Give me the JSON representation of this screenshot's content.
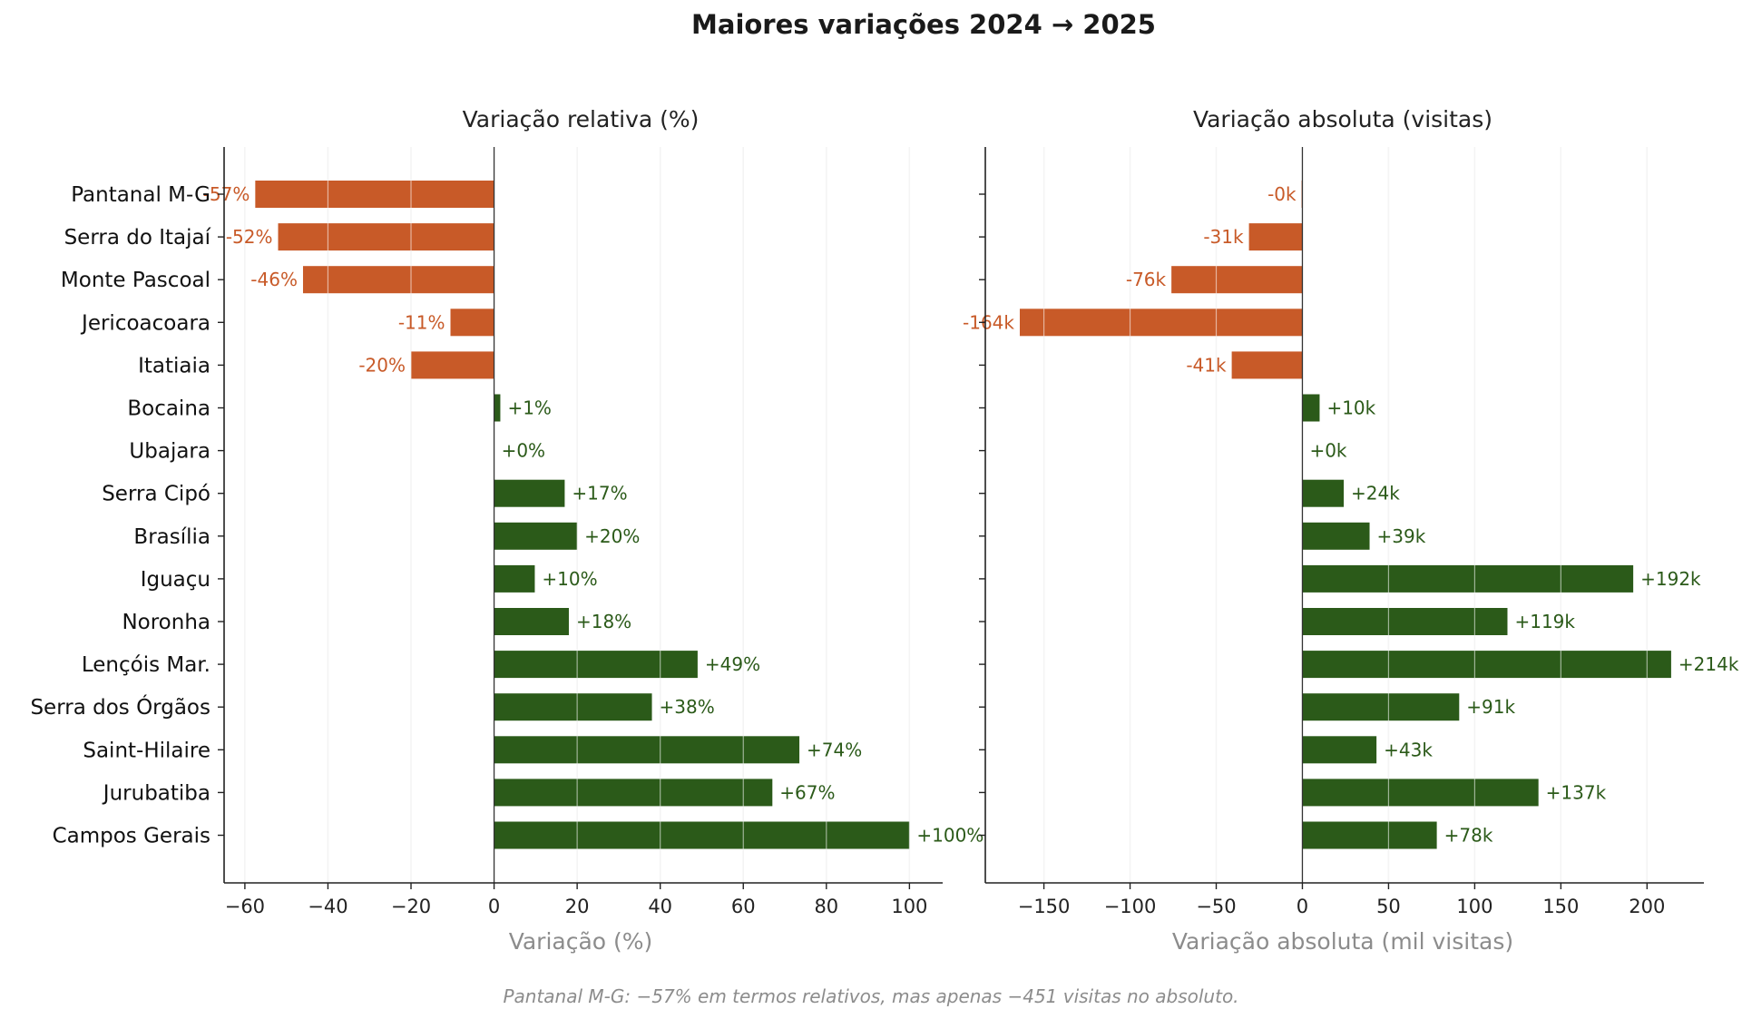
{
  "figure": {
    "title": "Maiores variações 2024 → 2025",
    "footnote": "Pantanal M-G: −57% em termos relativos, mas apenas −451 visitas no absoluto."
  },
  "colors": {
    "negative": "#c85a28",
    "positive": "#2b5a19",
    "axis_label": "#8c8c8c",
    "grid": "#e6e6e6"
  },
  "chart_data": [
    {
      "type": "bar",
      "orientation": "horizontal",
      "title": "Variação relativa (%)",
      "xlabel": "Variação (%)",
      "ylabel": "",
      "xlim": [
        -65,
        108
      ],
      "xticks": [
        -60,
        -40,
        -20,
        0,
        20,
        40,
        60,
        80,
        100
      ],
      "grid": "vertical",
      "categories": [
        "Pantanal M-G",
        "Serra do Itajaí",
        "Monte Pascoal",
        "Jericoacoara",
        "Itatiaia",
        "Bocaina",
        "Ubajara",
        "Serra Cipó",
        "Brasília",
        "Iguaçu",
        "Noronha",
        "Lençóis Mar.",
        "Serra dos Órgãos",
        "Saint-Hilaire",
        "Jurubatiba",
        "Campos Gerais"
      ],
      "values": [
        -57.5,
        -52,
        -46,
        -10.5,
        -20,
        1.5,
        0,
        17,
        20,
        9.8,
        18,
        49,
        38,
        73.5,
        67,
        100
      ],
      "labels": [
        "-57%",
        "-52%",
        "-46%",
        "-11%",
        "-20%",
        "+1%",
        "+0%",
        "+17%",
        "+20%",
        "+10%",
        "+18%",
        "+49%",
        "+38%",
        "+74%",
        "+67%",
        "+100%"
      ]
    },
    {
      "type": "bar",
      "orientation": "horizontal",
      "title": "Variação absoluta (visitas)",
      "xlabel": "Variação absoluta (mil visitas)",
      "ylabel": "",
      "xlim": [
        -184,
        233
      ],
      "xticks": [
        -150,
        -100,
        -50,
        0,
        50,
        100,
        150,
        200
      ],
      "grid": "vertical",
      "categories": [
        "Pantanal M-G",
        "Serra do Itajaí",
        "Monte Pascoal",
        "Jericoacoara",
        "Itatiaia",
        "Bocaina",
        "Ubajara",
        "Serra Cipó",
        "Brasília",
        "Iguaçu",
        "Noronha",
        "Lençóis Mar.",
        "Serra dos Órgãos",
        "Saint-Hilaire",
        "Jurubatiba",
        "Campos Gerais"
      ],
      "values": [
        -0.451,
        -31,
        -76,
        -164,
        -41,
        10,
        0,
        24,
        39,
        192,
        119,
        214,
        91,
        43,
        137,
        78
      ],
      "labels": [
        "-0k",
        "-31k",
        "-76k",
        "-164k",
        "-41k",
        "+10k",
        "+0k",
        "+24k",
        "+39k",
        "+192k",
        "+119k",
        "+214k",
        "+91k",
        "+43k",
        "+137k",
        "+78k"
      ]
    }
  ]
}
